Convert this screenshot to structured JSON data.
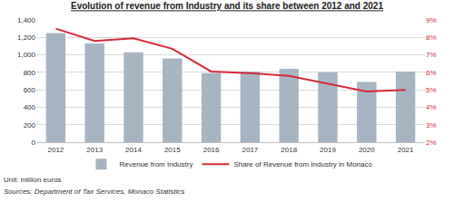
{
  "chart_data": {
    "type": "bar",
    "title": "Evolution of revenue from Industry and its share between 2012 and 2021",
    "categories": [
      "2012",
      "2013",
      "2014",
      "2015",
      "2016",
      "2017",
      "2018",
      "2019",
      "2020",
      "2021"
    ],
    "series": [
      {
        "name": "Revenue from Industry",
        "type": "bar",
        "color": "#a7b4c2",
        "values": [
          1250,
          1130,
          1030,
          960,
          790,
          810,
          840,
          800,
          690,
          810
        ]
      },
      {
        "name": "Share of Revenue from Industry in Monaco",
        "type": "line",
        "color": "#d62839",
        "axis": "y2",
        "values": [
          8.5,
          7.8,
          7.95,
          7.35,
          6.05,
          5.95,
          5.8,
          5.35,
          4.9,
          5.0
        ]
      }
    ],
    "ylim": [
      0,
      1400
    ],
    "yticks": [
      0,
      200,
      400,
      600,
      800,
      {
        "value": 1000,
        "label": "1,000"
      },
      {
        "value": 1200,
        "label": "1,200"
      },
      {
        "value": 1400,
        "label": "1,400"
      }
    ],
    "y2lim": [
      2,
      9
    ],
    "y2ticks": [
      {
        "value": 2,
        "label": "2%"
      },
      {
        "value": 3,
        "label": "3%"
      },
      {
        "value": 4,
        "label": "4%"
      },
      {
        "value": 5,
        "label": "5%"
      },
      {
        "value": 6,
        "label": "6%"
      },
      {
        "value": 7,
        "label": "7%"
      },
      {
        "value": 8,
        "label": "8%"
      },
      {
        "value": 9,
        "label": "9%"
      }
    ],
    "grid": true,
    "legend": "bottom",
    "annotations": [
      "Unit: million euros",
      "Sources: Department of Tax Services, Monaco Statistics"
    ]
  }
}
